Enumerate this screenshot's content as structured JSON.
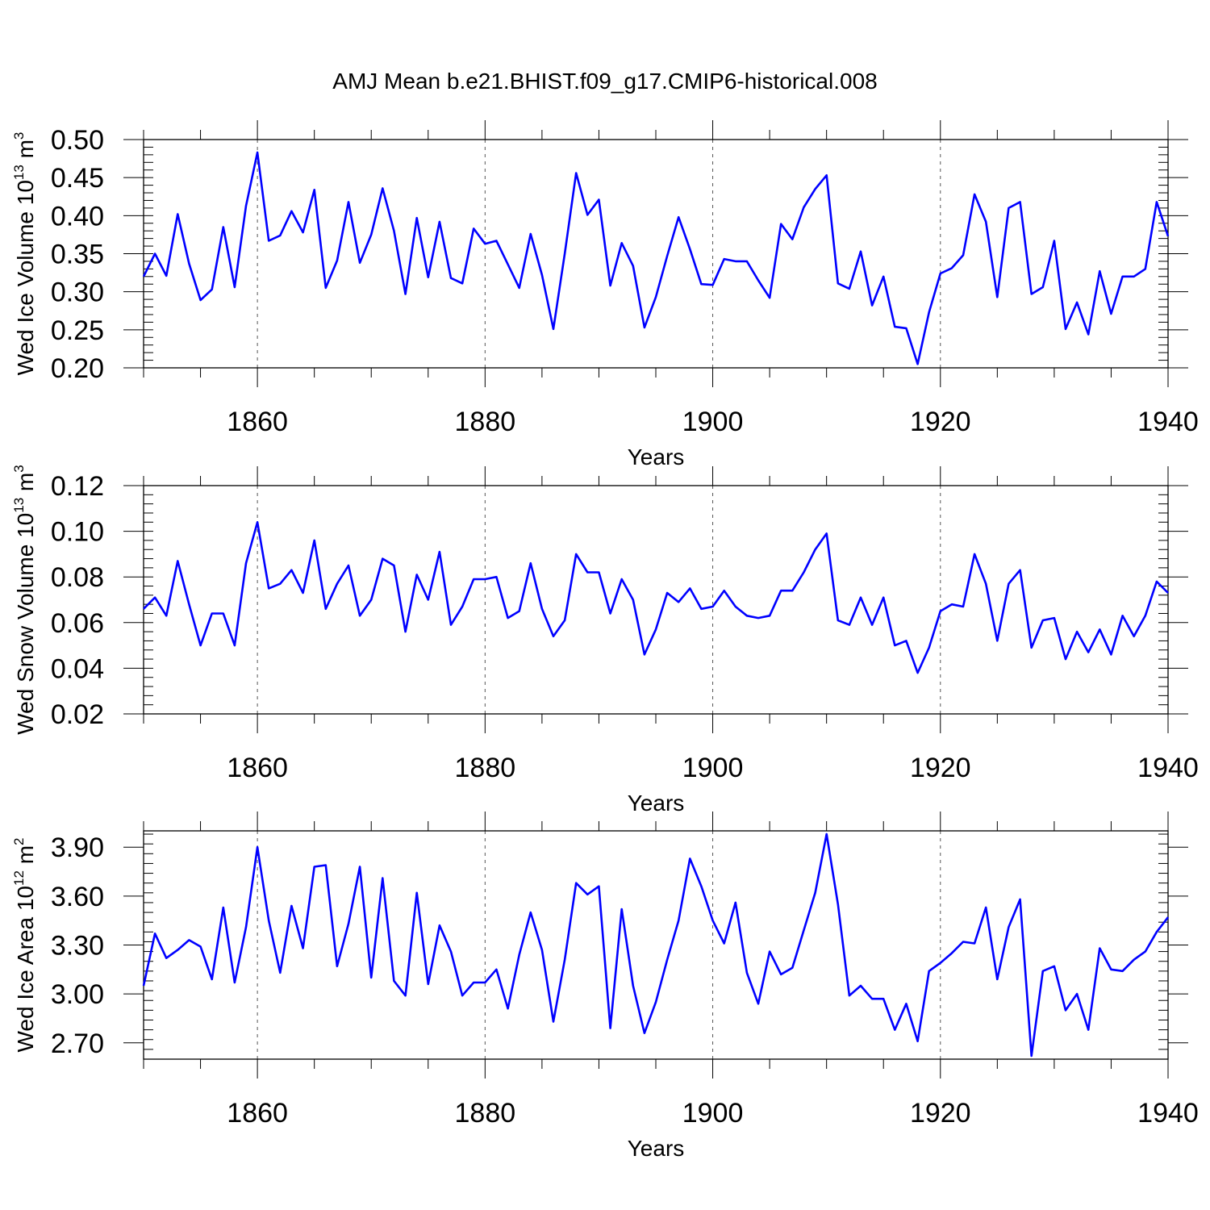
{
  "chart_data": {
    "type": "line",
    "title": "AMJ Mean b.e21.BHIST.f09_g17.CMIP6-historical.008",
    "line_color": "#0000ff",
    "x_start": 1850,
    "xlim": [
      1850,
      1940
    ],
    "x_major_ticks": [
      1860,
      1880,
      1900,
      1920,
      1940
    ],
    "x_tick_labels": [
      "1860",
      "1880",
      "1900",
      "1920",
      "1940"
    ],
    "panels": [
      {
        "ylabel": "Wed Ice Volume 10",
        "ylabel_exp": "13",
        "ylabel_unit": " m",
        "ylabel_unit_exp": "3",
        "xlabel": "Years",
        "ylim": [
          0.2,
          0.5
        ],
        "y_ticks": [
          0.2,
          0.25,
          0.3,
          0.35,
          0.4,
          0.45,
          0.5
        ],
        "y_tick_labels": [
          "0.20",
          "0.25",
          "0.30",
          "0.35",
          "0.40",
          "0.45",
          "0.50"
        ],
        "values": [
          0.32,
          0.35,
          0.321,
          0.402,
          0.337,
          0.289,
          0.303,
          0.385,
          0.306,
          0.413,
          0.483,
          0.367,
          0.374,
          0.406,
          0.378,
          0.434,
          0.305,
          0.341,
          0.418,
          0.338,
          0.375,
          0.436,
          0.38,
          0.297,
          0.397,
          0.319,
          0.392,
          0.318,
          0.311,
          0.383,
          0.363,
          0.367,
          0.336,
          0.305,
          0.376,
          0.322,
          0.251,
          0.35,
          0.456,
          0.401,
          0.421,
          0.308,
          0.364,
          0.334,
          0.253,
          0.293,
          0.347,
          0.398,
          0.356,
          0.31,
          0.309,
          0.343,
          0.34,
          0.34,
          0.315,
          0.292,
          0.389,
          0.369,
          0.411,
          0.435,
          0.453,
          0.311,
          0.304,
          0.353,
          0.282,
          0.32,
          0.254,
          0.252,
          0.205,
          0.273,
          0.324,
          0.331,
          0.348,
          0.428,
          0.392,
          0.293,
          0.41,
          0.418,
          0.297,
          0.306,
          0.367,
          0.251,
          0.286,
          0.244,
          0.327,
          0.271,
          0.32,
          0.32,
          0.33,
          0.418,
          0.373
        ]
      },
      {
        "ylabel": "Wed Snow Volume 10",
        "ylabel_exp": "13",
        "ylabel_unit": " m",
        "ylabel_unit_exp": "3",
        "xlabel": "Years",
        "ylim": [
          0.02,
          0.12
        ],
        "y_ticks": [
          0.02,
          0.04,
          0.06,
          0.08,
          0.1,
          0.12
        ],
        "y_tick_labels": [
          "0.02",
          "0.04",
          "0.06",
          "0.08",
          "0.10",
          "0.12"
        ],
        "values": [
          0.066,
          0.071,
          0.063,
          0.087,
          0.068,
          0.05,
          0.064,
          0.064,
          0.05,
          0.086,
          0.104,
          0.075,
          0.077,
          0.083,
          0.073,
          0.096,
          0.066,
          0.077,
          0.085,
          0.063,
          0.07,
          0.088,
          0.085,
          0.056,
          0.081,
          0.07,
          0.091,
          0.059,
          0.067,
          0.079,
          0.079,
          0.08,
          0.062,
          0.065,
          0.086,
          0.066,
          0.054,
          0.061,
          0.09,
          0.082,
          0.082,
          0.064,
          0.079,
          0.07,
          0.046,
          0.057,
          0.073,
          0.069,
          0.075,
          0.066,
          0.067,
          0.074,
          0.067,
          0.063,
          0.062,
          0.063,
          0.074,
          0.074,
          0.082,
          0.092,
          0.099,
          0.061,
          0.059,
          0.071,
          0.059,
          0.071,
          0.05,
          0.052,
          0.038,
          0.049,
          0.065,
          0.068,
          0.067,
          0.09,
          0.077,
          0.052,
          0.077,
          0.083,
          0.049,
          0.061,
          0.062,
          0.044,
          0.056,
          0.047,
          0.057,
          0.046,
          0.063,
          0.054,
          0.063,
          0.078,
          0.073
        ]
      },
      {
        "ylabel": "Wed Ice Area 10",
        "ylabel_exp": "12",
        "ylabel_unit": " m",
        "ylabel_unit_exp": "2",
        "xlabel": "Years",
        "ylim": [
          2.6,
          4.0
        ],
        "y_ticks": [
          2.7,
          3.0,
          3.3,
          3.6,
          3.9
        ],
        "y_tick_labels": [
          "2.70",
          "3.00",
          "3.30",
          "3.60",
          "3.90"
        ],
        "values": [
          3.05,
          3.37,
          3.22,
          3.27,
          3.33,
          3.29,
          3.09,
          3.53,
          3.07,
          3.41,
          3.9,
          3.45,
          3.13,
          3.54,
          3.28,
          3.78,
          3.79,
          3.17,
          3.43,
          3.78,
          3.1,
          3.71,
          3.08,
          2.99,
          3.62,
          3.06,
          3.42,
          3.26,
          2.99,
          3.07,
          3.07,
          3.15,
          2.91,
          3.24,
          3.5,
          3.27,
          2.83,
          3.21,
          3.68,
          3.61,
          3.66,
          2.79,
          3.52,
          3.05,
          2.76,
          2.95,
          3.21,
          3.45,
          3.83,
          3.66,
          3.45,
          3.31,
          3.56,
          3.13,
          2.94,
          3.26,
          3.12,
          3.16,
          3.39,
          3.62,
          3.98,
          3.55,
          2.99,
          3.05,
          2.97,
          2.97,
          2.78,
          2.94,
          2.71,
          3.14,
          3.19,
          3.25,
          3.32,
          3.31,
          3.53,
          3.09,
          3.41,
          3.58,
          2.62,
          3.14,
          3.17,
          2.9,
          3.0,
          2.78,
          3.28,
          3.15,
          3.14,
          3.21,
          3.26,
          3.38,
          3.47
        ]
      }
    ]
  }
}
